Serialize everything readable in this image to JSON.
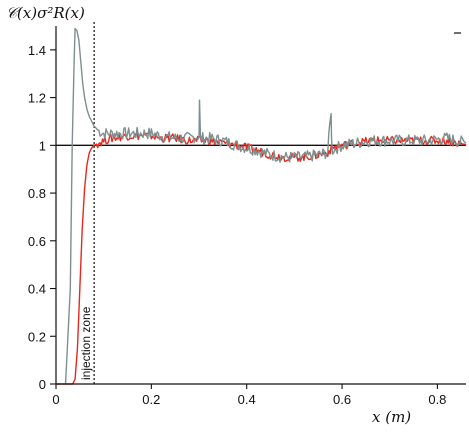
{
  "chart_data": {
    "type": "line",
    "ylabel": "𝒞(x)σ²R(x)",
    "xlabel": "x (m)",
    "xlim": [
      0,
      0.86
    ],
    "ylim": [
      0,
      1.5
    ],
    "x_ticks": [
      0,
      0.2,
      0.4,
      0.6,
      0.8
    ],
    "x_tick_labels": [
      "0",
      "0.2",
      "0.4",
      "0.6",
      "0.8"
    ],
    "y_ticks": [
      0,
      0.2,
      0.4,
      0.6,
      0.8,
      1,
      1.2,
      1.4
    ],
    "y_tick_labels": [
      "0",
      "0.2",
      "0.4",
      "0.6",
      "0.8",
      "1",
      "1.2",
      "1.4"
    ],
    "reference_line": {
      "y": 1,
      "color": "#111111"
    },
    "injection_boundary_x": 0.08,
    "annotation": "injection zone",
    "grid": false,
    "series": [
      {
        "color": "#7f8f8f",
        "x": [
          0.02,
          0.03,
          0.034,
          0.038,
          0.04,
          0.044,
          0.048,
          0.052,
          0.056,
          0.06,
          0.065,
          0.07,
          0.075,
          0.08,
          0.09,
          0.1,
          0.12,
          0.15,
          0.18,
          0.2,
          0.22,
          0.25,
          0.28,
          0.3,
          0.301,
          0.303,
          0.32,
          0.35,
          0.38,
          0.4,
          0.42,
          0.45,
          0.48,
          0.5,
          0.52,
          0.55,
          0.57,
          0.577,
          0.578,
          0.58,
          0.6,
          0.63,
          0.66,
          0.7,
          0.74,
          0.78,
          0.82,
          0.86
        ],
        "y": [
          0.0,
          0.4,
          1.0,
          1.35,
          1.49,
          1.48,
          1.44,
          1.35,
          1.26,
          1.2,
          1.15,
          1.12,
          1.1,
          1.08,
          1.06,
          1.05,
          1.05,
          1.05,
          1.05,
          1.05,
          1.04,
          1.03,
          1.03,
          1.04,
          1.18,
          1.03,
          1.03,
          1.02,
          1.0,
          0.99,
          0.98,
          0.96,
          0.95,
          0.95,
          0.95,
          0.96,
          0.97,
          1.15,
          1.02,
          0.98,
          1.0,
          1.01,
          1.02,
          1.02,
          1.02,
          1.02,
          1.03,
          1.01
        ]
      },
      {
        "color": "#e8271e",
        "x": [
          0.0,
          0.035,
          0.04,
          0.045,
          0.05,
          0.055,
          0.06,
          0.065,
          0.07,
          0.075,
          0.08,
          0.09,
          0.1,
          0.12,
          0.15,
          0.18,
          0.2,
          0.22,
          0.25,
          0.28,
          0.3,
          0.32,
          0.35,
          0.38,
          0.4,
          0.42,
          0.45,
          0.48,
          0.5,
          0.52,
          0.55,
          0.57,
          0.58,
          0.6,
          0.63,
          0.66,
          0.7,
          0.74,
          0.78,
          0.82,
          0.86
        ],
        "y": [
          0.0,
          0.0,
          0.02,
          0.15,
          0.4,
          0.65,
          0.82,
          0.92,
          0.97,
          0.99,
          1.0,
          1.01,
          1.02,
          1.03,
          1.04,
          1.04,
          1.04,
          1.03,
          1.03,
          1.02,
          1.02,
          1.02,
          1.01,
          1.0,
          0.99,
          0.98,
          0.96,
          0.95,
          0.95,
          0.95,
          0.96,
          0.97,
          0.99,
          1.0,
          1.01,
          1.02,
          1.02,
          1.02,
          1.02,
          1.02,
          1.0
        ]
      }
    ]
  }
}
